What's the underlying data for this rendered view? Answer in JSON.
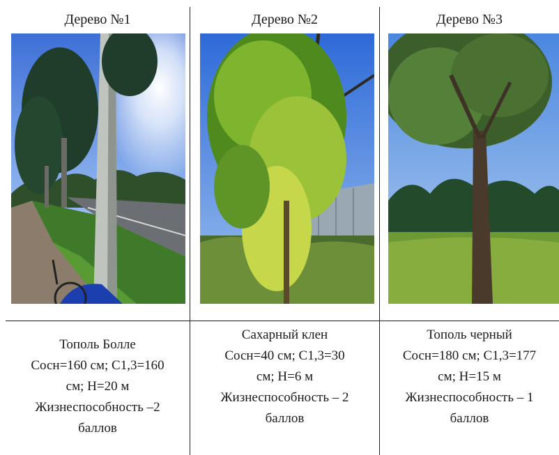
{
  "trees": [
    {
      "title": "Дерево №1",
      "photo_icon": "poplar-roadside-photo",
      "lines": [
        "Тополь Болле",
        "Сосн=160 см; С1,3=160",
        "см; Н=20 м",
        "Жизнеспособность –2",
        "баллов"
      ]
    },
    {
      "title": "Дерево №2",
      "photo_icon": "maple-photo",
      "lines": [
        "Сахарный клен",
        "Сосн=40 см; С1,3=30",
        "см; Н=6 м",
        "Жизнеспособность – 2",
        "баллов"
      ]
    },
    {
      "title": "Дерево №3",
      "photo_icon": "black-poplar-photo",
      "lines": [
        "Тополь черный",
        "Сосн=180 см; С1,3=177",
        "см; Н=15 м",
        "Жизнеспособность – 1",
        "баллов"
      ]
    }
  ]
}
